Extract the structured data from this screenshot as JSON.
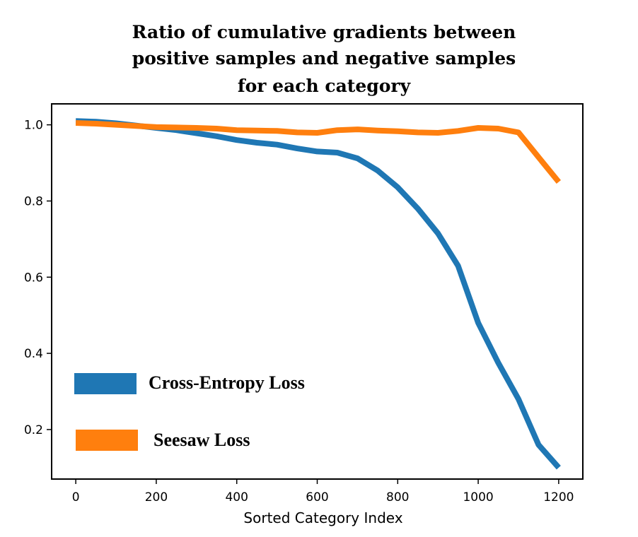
{
  "chart_data": {
    "type": "line",
    "title_lines": [
      "Ratio of cumulative gradients between",
      "positive samples and negative samples",
      "for each category"
    ],
    "xlabel": "Sorted Category Index",
    "ylabel": "",
    "xlim": [
      -60,
      1260
    ],
    "ylim": [
      0.07,
      1.055
    ],
    "xticks": [
      0,
      200,
      400,
      600,
      800,
      1000,
      1200
    ],
    "xtick_labels": [
      "0",
      "200",
      "400",
      "600",
      "800",
      "1000",
      "1200"
    ],
    "yticks": [
      0.2,
      0.4,
      0.6,
      0.8,
      1.0
    ],
    "ytick_labels": [
      "0.2",
      "0.4",
      "0.6",
      "0.8",
      "1.0"
    ],
    "grid": false,
    "legend_position": "lower-left",
    "series": [
      {
        "name": "Cross-Entropy Loss",
        "color": "#1f77b4",
        "x": [
          0,
          50,
          100,
          150,
          200,
          250,
          300,
          350,
          400,
          450,
          500,
          550,
          600,
          650,
          700,
          750,
          800,
          850,
          900,
          950,
          1000,
          1050,
          1100,
          1150,
          1200
        ],
        "y": [
          1.01,
          1.008,
          1.004,
          0.998,
          0.992,
          0.986,
          0.978,
          0.97,
          0.96,
          0.953,
          0.948,
          0.938,
          0.93,
          0.927,
          0.912,
          0.88,
          0.836,
          0.78,
          0.715,
          0.63,
          0.48,
          0.375,
          0.28,
          0.16,
          0.1
        ]
      },
      {
        "name": "Seesaw Loss",
        "color": "#ff7f0e",
        "x": [
          0,
          50,
          100,
          150,
          200,
          250,
          300,
          350,
          400,
          450,
          500,
          550,
          600,
          650,
          700,
          750,
          800,
          850,
          900,
          950,
          1000,
          1050,
          1100,
          1150,
          1200
        ],
        "y": [
          1.005,
          1.003,
          1.0,
          0.997,
          0.994,
          0.993,
          0.992,
          0.99,
          0.986,
          0.985,
          0.984,
          0.98,
          0.979,
          0.986,
          0.988,
          0.985,
          0.983,
          0.98,
          0.979,
          0.984,
          0.992,
          0.99,
          0.98,
          0.915,
          0.85
        ]
      }
    ]
  }
}
